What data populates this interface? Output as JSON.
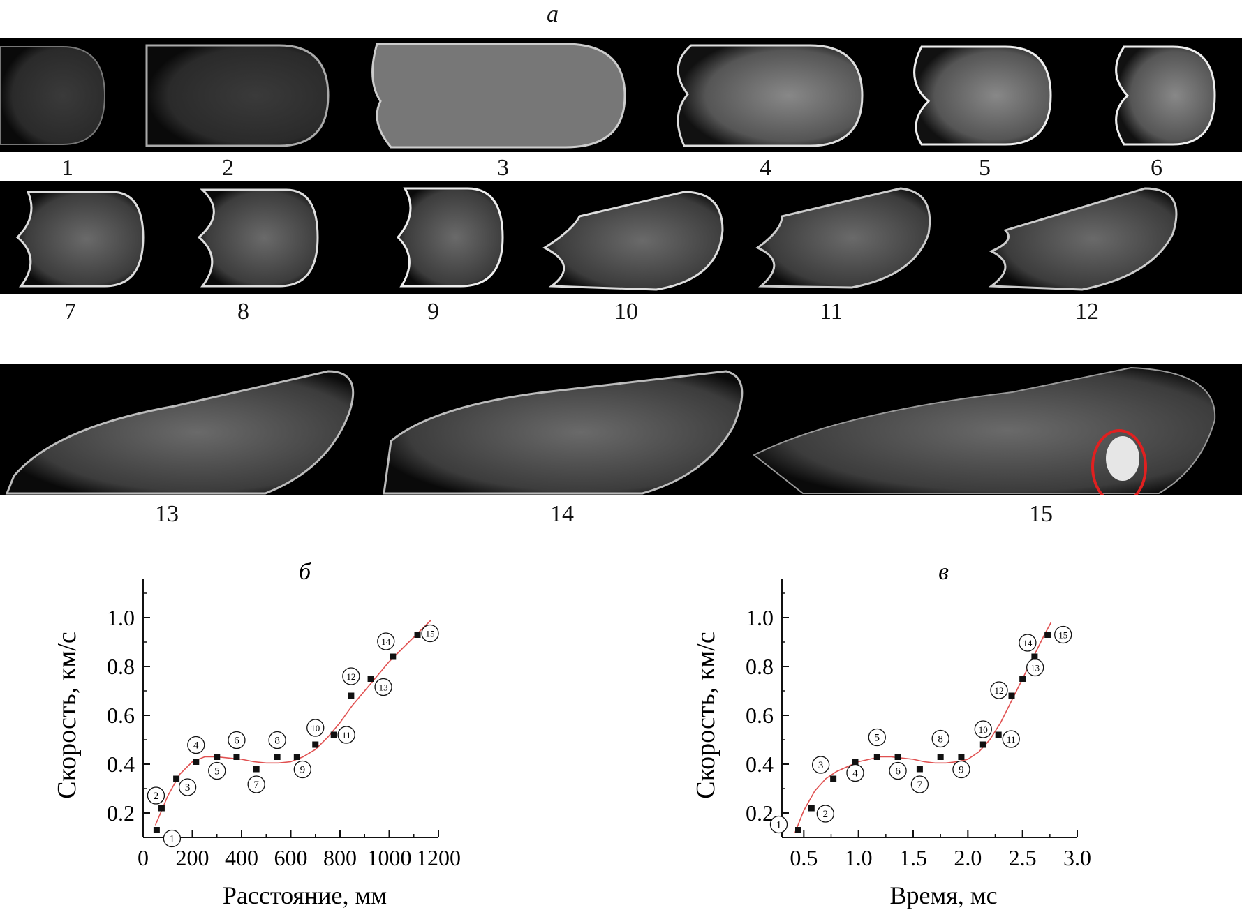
{
  "figure": {
    "panel_a_letter": "a",
    "strips": [
      {
        "frames": [
          "1",
          "2",
          "3",
          "4",
          "5",
          "6"
        ]
      },
      {
        "frames": [
          "7",
          "8",
          "9",
          "10",
          "11",
          "12"
        ]
      },
      {
        "frames": [
          "13",
          "14",
          "15"
        ]
      }
    ],
    "highlight_color": "#e02020"
  },
  "chart_data": [
    {
      "type": "scatter",
      "panel_letter": "б",
      "xlabel": "Расстояние, мм",
      "ylabel": "Скорость, км/с",
      "xlim": [
        0,
        1200
      ],
      "ylim": [
        0.1,
        1.1
      ],
      "xticks": [
        "0",
        "200",
        "400",
        "600",
        "800",
        "1000",
        "1200"
      ],
      "yticks": [
        "0.2",
        "0.4",
        "0.6",
        "0.8",
        "1.0"
      ],
      "grid": false,
      "fit_color": "#e05050",
      "points": [
        {
          "label": "1",
          "x": 55,
          "y": 0.13
        },
        {
          "label": "2",
          "x": 75,
          "y": 0.22
        },
        {
          "label": "3",
          "x": 135,
          "y": 0.34
        },
        {
          "label": "4",
          "x": 215,
          "y": 0.41
        },
        {
          "label": "5",
          "x": 300,
          "y": 0.43
        },
        {
          "label": "6",
          "x": 380,
          "y": 0.43
        },
        {
          "label": "7",
          "x": 460,
          "y": 0.38
        },
        {
          "label": "8",
          "x": 545,
          "y": 0.43
        },
        {
          "label": "9",
          "x": 625,
          "y": 0.43
        },
        {
          "label": "10",
          "x": 700,
          "y": 0.48
        },
        {
          "label": "11",
          "x": 775,
          "y": 0.52
        },
        {
          "label": "12",
          "x": 845,
          "y": 0.68
        },
        {
          "label": "13",
          "x": 925,
          "y": 0.75
        },
        {
          "label": "14",
          "x": 1015,
          "y": 0.84
        },
        {
          "label": "15",
          "x": 1115,
          "y": 0.93
        }
      ],
      "fit": {
        "x": [
          50,
          100,
          150,
          200,
          250,
          300,
          350,
          400,
          450,
          500,
          550,
          600,
          650,
          700,
          750,
          800,
          850,
          900,
          950,
          1000,
          1050,
          1100,
          1150,
          1170
        ],
        "y": [
          0.15,
          0.27,
          0.36,
          0.41,
          0.43,
          0.43,
          0.425,
          0.42,
          0.41,
          0.405,
          0.405,
          0.41,
          0.43,
          0.46,
          0.51,
          0.57,
          0.64,
          0.7,
          0.76,
          0.82,
          0.87,
          0.92,
          0.97,
          0.99
        ]
      }
    },
    {
      "type": "scatter",
      "panel_letter": "в",
      "xlabel": "Время, мс",
      "ylabel": "Скорость, км/с",
      "xlim": [
        0.3,
        3.0
      ],
      "ylim": [
        0.1,
        1.1
      ],
      "xticks": [
        "0.5",
        "1.0",
        "1.5",
        "2.0",
        "2.5",
        "3.0"
      ],
      "yticks": [
        "0.2",
        "0.4",
        "0.6",
        "0.8",
        "1.0"
      ],
      "grid": false,
      "fit_color": "#e05050",
      "points": [
        {
          "label": "1",
          "x": 0.45,
          "y": 0.13
        },
        {
          "label": "2",
          "x": 0.57,
          "y": 0.22
        },
        {
          "label": "3",
          "x": 0.77,
          "y": 0.34
        },
        {
          "label": "4",
          "x": 0.97,
          "y": 0.41
        },
        {
          "label": "5",
          "x": 1.17,
          "y": 0.43
        },
        {
          "label": "6",
          "x": 1.36,
          "y": 0.43
        },
        {
          "label": "7",
          "x": 1.56,
          "y": 0.38
        },
        {
          "label": "8",
          "x": 1.75,
          "y": 0.43
        },
        {
          "label": "9",
          "x": 1.94,
          "y": 0.43
        },
        {
          "label": "10",
          "x": 2.14,
          "y": 0.48
        },
        {
          "label": "11",
          "x": 2.28,
          "y": 0.52
        },
        {
          "label": "12",
          "x": 2.4,
          "y": 0.68
        },
        {
          "label": "13",
          "x": 2.5,
          "y": 0.75
        },
        {
          "label": "14",
          "x": 2.61,
          "y": 0.84
        },
        {
          "label": "15",
          "x": 2.73,
          "y": 0.93
        }
      ],
      "fit": {
        "x": [
          0.42,
          0.5,
          0.6,
          0.7,
          0.8,
          0.9,
          1.0,
          1.1,
          1.2,
          1.3,
          1.4,
          1.5,
          1.6,
          1.7,
          1.8,
          1.9,
          2.0,
          2.1,
          2.2,
          2.3,
          2.4,
          2.5,
          2.6,
          2.7,
          2.76
        ],
        "y": [
          0.12,
          0.21,
          0.29,
          0.34,
          0.37,
          0.39,
          0.41,
          0.42,
          0.43,
          0.43,
          0.425,
          0.42,
          0.41,
          0.405,
          0.405,
          0.41,
          0.42,
          0.45,
          0.5,
          0.57,
          0.66,
          0.75,
          0.84,
          0.93,
          0.98
        ]
      }
    }
  ]
}
